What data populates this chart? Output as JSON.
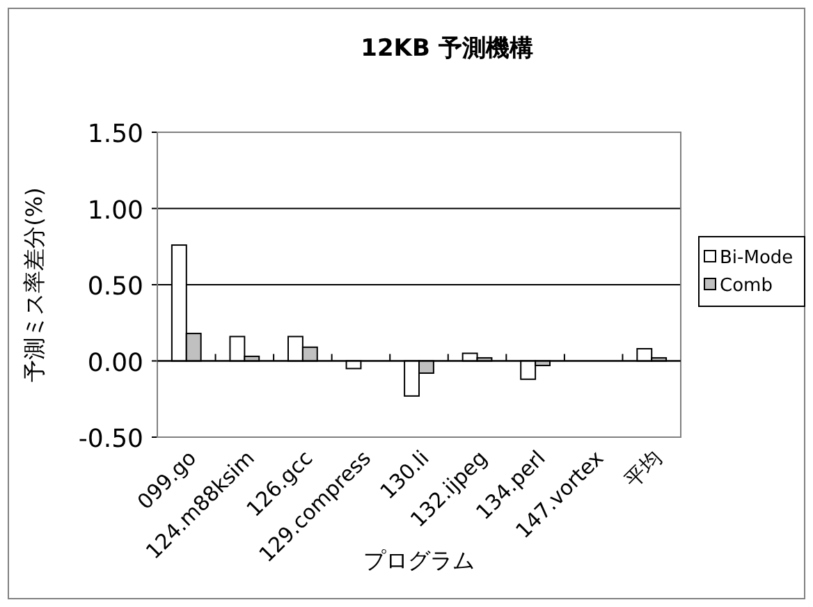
{
  "chart_data": {
    "type": "bar",
    "title": "12KB 予測機構",
    "xlabel": "プログラム",
    "ylabel": "予測ミス率差分(%)",
    "categories": [
      "099.go",
      "124.m88ksim",
      "126.gcc",
      "129.compress",
      "130.li",
      "132.ijpeg",
      "134.perl",
      "147.vortex",
      "平均"
    ],
    "series": [
      {
        "name": "Bi-Mode",
        "color": "#ffffff",
        "values": [
          0.76,
          0.16,
          0.16,
          -0.05,
          -0.23,
          0.05,
          -0.12,
          0,
          0.08
        ]
      },
      {
        "name": "Comb",
        "color": "#c0c0c0",
        "values": [
          0.18,
          0.03,
          0.09,
          0,
          -0.08,
          0.02,
          -0.03,
          0,
          0.02
        ]
      }
    ],
    "ylim": [
      -0.5,
      1.5
    ],
    "yticks": [
      {
        "value": -0.5,
        "label": "-0.50"
      },
      {
        "value": 0,
        "label": "0.00"
      },
      {
        "value": 0.5,
        "label": "0.50"
      },
      {
        "value": 1,
        "label": "1.00"
      },
      {
        "value": 1.5,
        "label": "1.50"
      }
    ],
    "grid": "y",
    "legend": "right"
  }
}
